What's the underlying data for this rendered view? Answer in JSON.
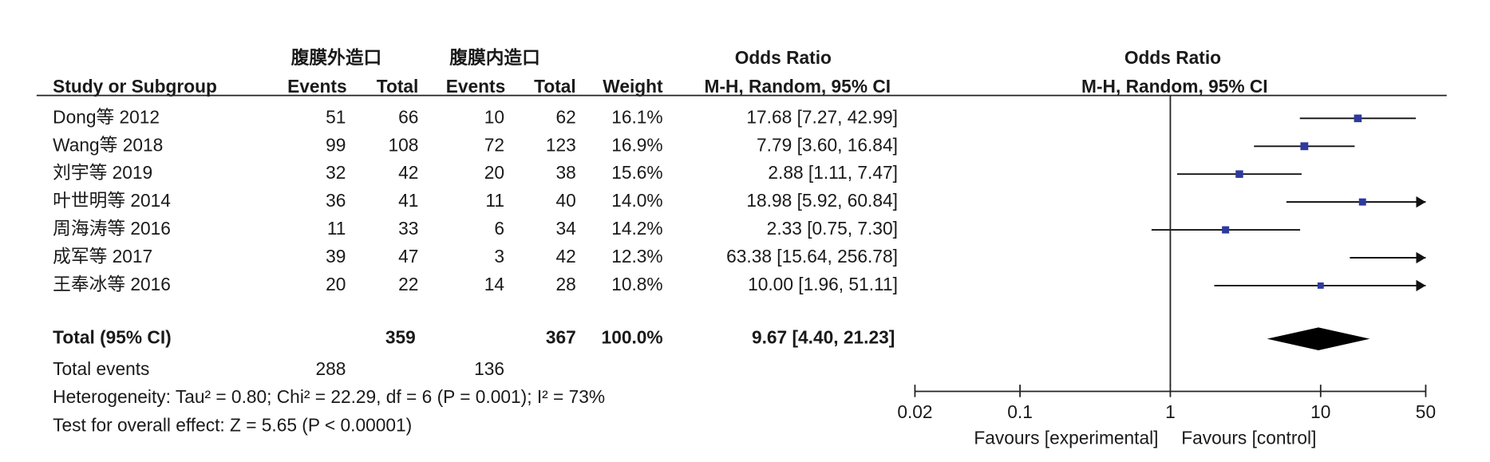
{
  "chart_data": {
    "type": "forest",
    "group1": "腹膜外造口",
    "group2": "腹膜内造口",
    "table_title": "Odds Ratio",
    "plot_title": "Odds Ratio",
    "columns": [
      "Study or Subgroup",
      "Events",
      "Total",
      "Events",
      "Total",
      "Weight",
      "M-H, Random, 95% CI"
    ],
    "plot_subtitle": "M-H, Random, 95% CI",
    "studies": [
      {
        "name": "Dong等 2012",
        "events1": 51,
        "total1": 66,
        "events2": 10,
        "total2": 62,
        "weight": 16.1,
        "weight_label": "16.1%",
        "or": 17.68,
        "ci_lower": 7.27,
        "ci_upper": 42.99,
        "or_label": "17.68 [7.27, 42.99]"
      },
      {
        "name": "Wang等 2018",
        "events1": 99,
        "total1": 108,
        "events2": 72,
        "total2": 123,
        "weight": 16.9,
        "weight_label": "16.9%",
        "or": 7.79,
        "ci_lower": 3.6,
        "ci_upper": 16.84,
        "or_label": "7.79 [3.60, 16.84]"
      },
      {
        "name": "刘宇等 2019",
        "events1": 32,
        "total1": 42,
        "events2": 20,
        "total2": 38,
        "weight": 15.6,
        "weight_label": "15.6%",
        "or": 2.88,
        "ci_lower": 1.11,
        "ci_upper": 7.47,
        "or_label": "2.88 [1.11, 7.47]"
      },
      {
        "name": "叶世明等 2014",
        "events1": 36,
        "total1": 41,
        "events2": 11,
        "total2": 40,
        "weight": 14.0,
        "weight_label": "14.0%",
        "or": 18.98,
        "ci_lower": 5.92,
        "ci_upper": 60.84,
        "or_label": "18.98 [5.92, 60.84]"
      },
      {
        "name": "周海涛等 2016",
        "events1": 11,
        "total1": 33,
        "events2": 6,
        "total2": 34,
        "weight": 14.2,
        "weight_label": "14.2%",
        "or": 2.33,
        "ci_lower": 0.75,
        "ci_upper": 7.3,
        "or_label": "2.33 [0.75, 7.30]"
      },
      {
        "name": "成军等 2017",
        "events1": 39,
        "total1": 47,
        "events2": 3,
        "total2": 42,
        "weight": 12.3,
        "weight_label": "12.3%",
        "or": 63.38,
        "ci_lower": 15.64,
        "ci_upper": 256.78,
        "or_label": "63.38 [15.64, 256.78]"
      },
      {
        "name": "王奉冰等 2016",
        "events1": 20,
        "total1": 22,
        "events2": 14,
        "total2": 28,
        "weight": 10.8,
        "weight_label": "10.8%",
        "or": 10.0,
        "ci_lower": 1.96,
        "ci_upper": 51.11,
        "or_label": "10.00 [1.96, 51.11]"
      }
    ],
    "total": {
      "name": "Total (95% CI)",
      "total1": 359,
      "total2": 367,
      "weight": 100,
      "weight_label": "100.0%",
      "or": 9.67,
      "ci_lower": 4.4,
      "ci_upper": 21.23,
      "or_label": "9.67 [4.40, 21.23]",
      "events_name": "Total events",
      "events1": 288,
      "events2": 136
    },
    "heterogeneity": "Heterogeneity: Tau² = 0.80; Chi² = 22.29, df = 6 (P = 0.001); I² = 73%",
    "overall_effect": "Test for overall effect: Z = 5.65 (P < 0.00001)",
    "log_x": true,
    "xlim": [
      0.02,
      50
    ],
    "xticks": [
      0.02,
      0.1,
      1,
      10,
      50
    ],
    "null_value": 1,
    "favours_left": "Favours [experimental]",
    "favours_right": "Favours [control]",
    "marker_color": "#2e3a9e",
    "diamond_color": "#000000"
  }
}
